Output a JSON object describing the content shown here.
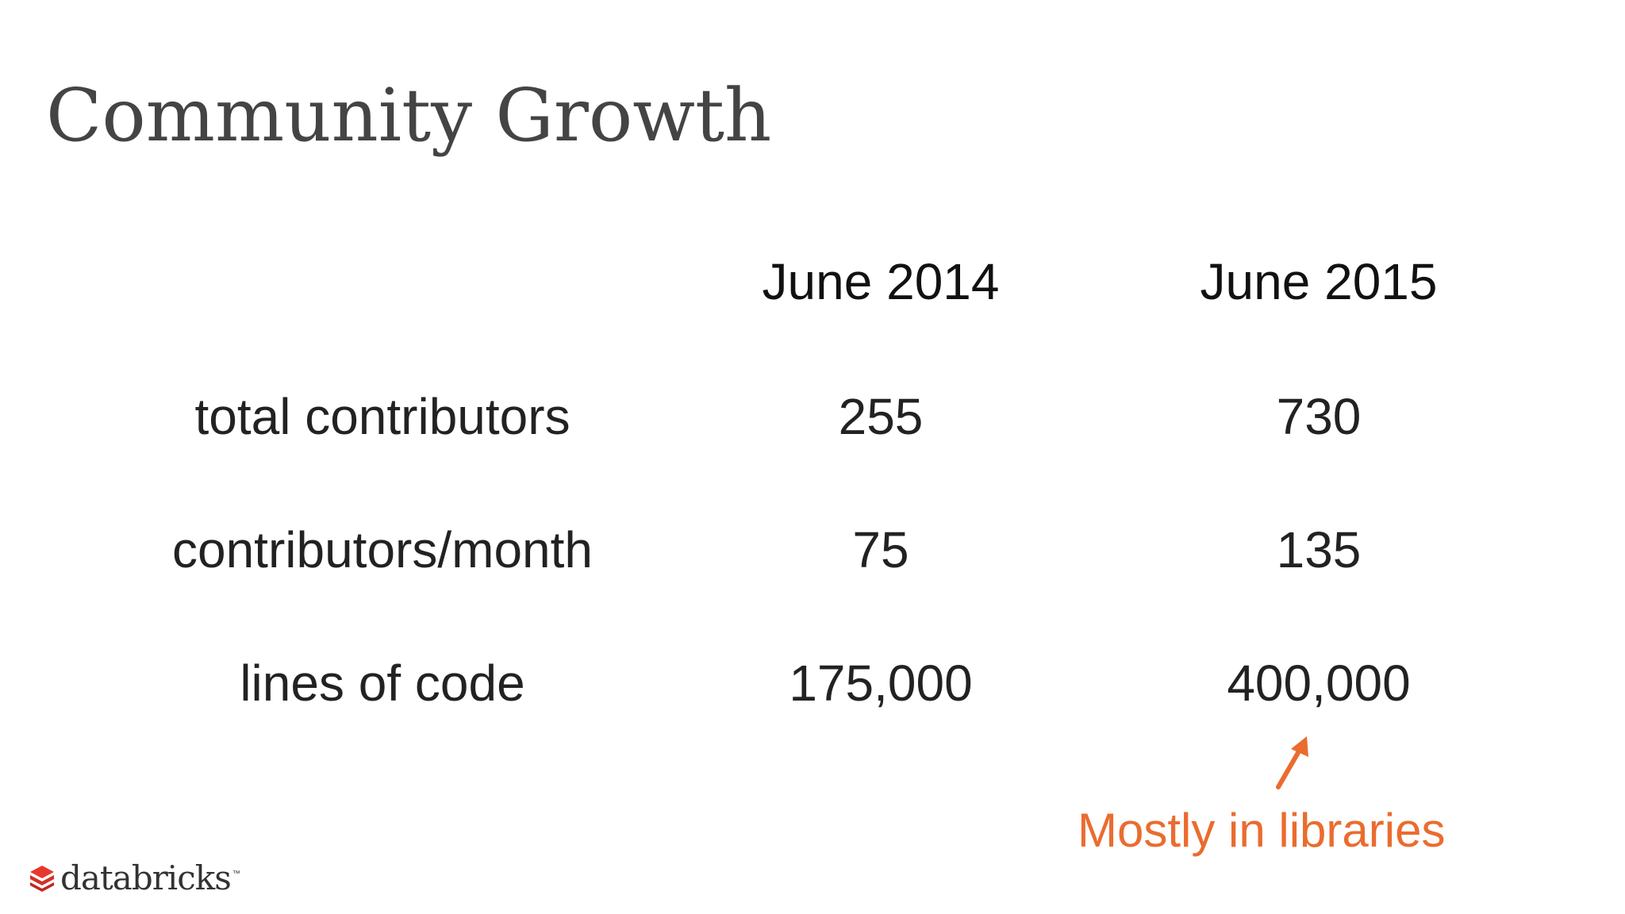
{
  "slide": {
    "title": "Community Growth"
  },
  "table": {
    "column_headers": [
      "June 2014",
      "June 2015"
    ],
    "rows": [
      {
        "label": "total contributors",
        "values": [
          "255",
          "730"
        ]
      },
      {
        "label": "contributors/month",
        "values": [
          "75",
          "135"
        ]
      },
      {
        "label": "lines of code",
        "values": [
          "175,000",
          "400,000"
        ]
      }
    ]
  },
  "annotation": {
    "text": "Mostly in libraries",
    "color": "#ea6c2f",
    "icon": "arrow-up-right-icon"
  },
  "logo": {
    "text": "databricks",
    "trademark": "™",
    "icon": "databricks-logo-icon",
    "color": "#e8382d"
  }
}
